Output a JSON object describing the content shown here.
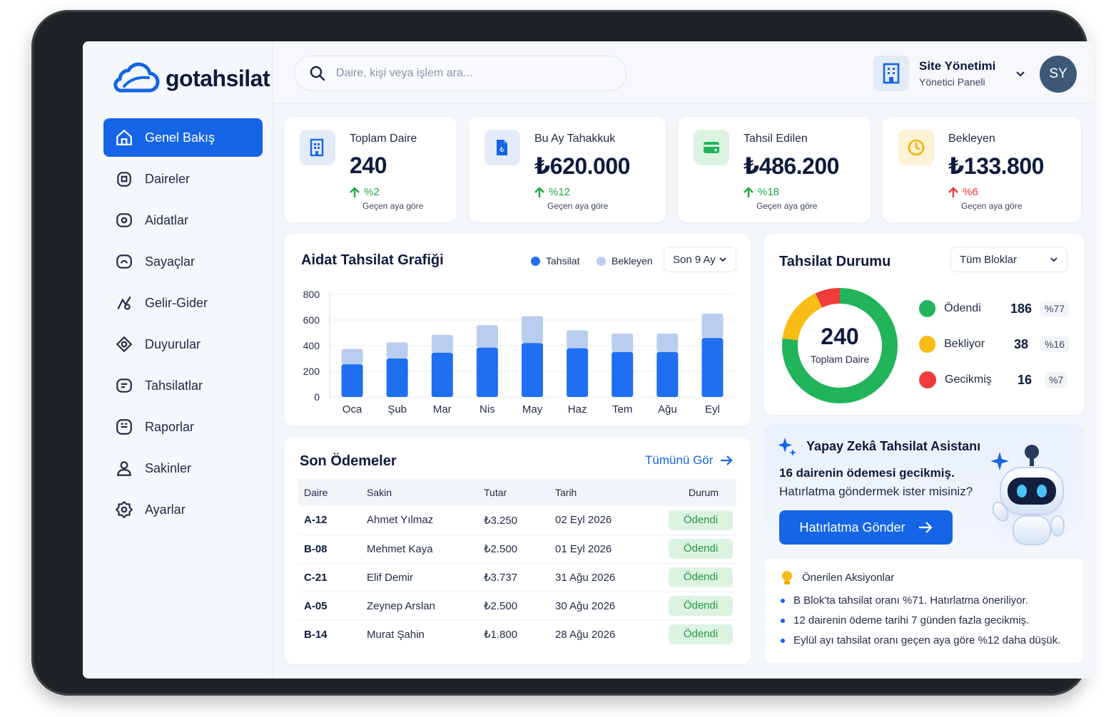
{
  "brand": {
    "name": "gotahsilat",
    "accent": "#1565e6"
  },
  "sidebar": {
    "items": [
      {
        "label": "Genel Bakış",
        "icon": "home-icon",
        "active": true
      },
      {
        "label": "Daireler",
        "icon": "building-icon"
      },
      {
        "label": "Aidatlar",
        "icon": "money-icon"
      },
      {
        "label": "Sayaçlar",
        "icon": "gauge-icon"
      },
      {
        "label": "Gelir-Gider",
        "icon": "chart-icon"
      },
      {
        "label": "Duyurular",
        "icon": "megaphone-icon"
      },
      {
        "label": "Tahsilatlar",
        "icon": "wallet-icon"
      },
      {
        "label": "Raporlar",
        "icon": "report-icon"
      },
      {
        "label": "Sakinler",
        "icon": "user-icon"
      },
      {
        "label": "Ayarlar",
        "icon": "gear-icon"
      }
    ]
  },
  "header": {
    "search_placeholder": "Daire, kişi veya işlem ara...",
    "org_title": "Site Yönetimi",
    "org_subtitle": "Yönetici Paneli",
    "avatar_initials": "SY"
  },
  "stats": [
    {
      "label": "Toplam Daire",
      "value": "240",
      "change": "%2",
      "direction": "up",
      "compare": "Geçen aya göre",
      "color": "#1faa3f"
    },
    {
      "label": "Bu Ay Tahakkuk",
      "value": "₺620.000",
      "change": "%12",
      "direction": "up",
      "compare": "Geçen aya göre",
      "color": "#1faa3f"
    },
    {
      "label": "Tahsil Edilen",
      "value": "₺486.200",
      "change": "%18",
      "direction": "up",
      "compare": "Geçen aya göre",
      "color": "#1faa3f"
    },
    {
      "label": "Bekleyen",
      "value": "₺133.800",
      "change": "%6",
      "direction": "up",
      "compare": "Geçen aya göre",
      "color": "#e53935"
    }
  ],
  "chart_section": {
    "title": "Aidat Tahsilat Grafiği",
    "legend_collected": "Tahsilat",
    "legend_pending": "Bekleyen",
    "period": "Son 9 Ay"
  },
  "chart_data": {
    "type": "bar",
    "stacked": true,
    "categories": [
      "Oca",
      "Şub",
      "Mar",
      "Nis",
      "May",
      "Haz",
      "Tem",
      "Ağu",
      "Eyl"
    ],
    "series": [
      {
        "name": "Tahsilat",
        "values": [
          255,
          300,
          345,
          385,
          420,
          380,
          350,
          350,
          460
        ],
        "color": "#1f6ff0"
      },
      {
        "name": "Bekleyen",
        "values": [
          120,
          125,
          140,
          175,
          210,
          140,
          145,
          145,
          190
        ],
        "color": "#b9cdf0"
      }
    ],
    "yticks": [
      0,
      200,
      400,
      600,
      800
    ],
    "ylim": [
      0,
      800
    ]
  },
  "status_section": {
    "title": "Tahsilat Durumu",
    "filter": "Tüm Bloklar",
    "total": "240",
    "total_label": "Toplam Daire",
    "items": [
      {
        "label": "Ödendi",
        "count": "186",
        "percent": "%77",
        "value": 77,
        "color": "#22b45b"
      },
      {
        "label": "Bekliyor",
        "count": "38",
        "percent": "%16",
        "value": 16,
        "color": "#f9bc15"
      },
      {
        "label": "Gecikmiş",
        "count": "16",
        "percent": "%7",
        "value": 7,
        "color": "#ef3b3b"
      }
    ]
  },
  "payments": {
    "title": "Son Ödemeler",
    "view_all": "Tümünü Gör",
    "columns": [
      "Daire",
      "Sakin",
      "Tutar",
      "Tarih",
      "Durum"
    ],
    "rows": [
      {
        "unit": "A-12",
        "resident": "Ahmet Yılmaz",
        "amount": "₺3.250",
        "date": "02 Eyl 2026",
        "status": "Ödendi"
      },
      {
        "unit": "B-08",
        "resident": "Mehmet Kaya",
        "amount": "₺2.500",
        "date": "01 Eyl 2026",
        "status": "Ödendi"
      },
      {
        "unit": "C-21",
        "resident": "Elif Demir",
        "amount": "₺3.737",
        "date": "31 Ağu 2026",
        "status": "Ödendi"
      },
      {
        "unit": "A-05",
        "resident": "Zeynep Arslan",
        "amount": "₺2.500",
        "date": "30 Ağu 2026",
        "status": "Ödendi"
      },
      {
        "unit": "B-14",
        "resident": "Murat Şahin",
        "amount": "₺1.800",
        "date": "28 Ağu 2026",
        "status": "Ödendi"
      }
    ]
  },
  "assistant": {
    "title": "Yapay Zekâ Tahsilat Asistanı",
    "headline": "16 dairenin ödemesi gecikmiş.",
    "question": "Hatırlatma göndermek ister misiniz?",
    "button": "Hatırlatma Gönder",
    "suggestions_title": "Önerilen Aksiyonlar",
    "suggestions": [
      "B Blok'ta tahsilat oranı %71. Hatırlatma öneriliyor.",
      "12 dairenin ödeme tarihi 7 günden fazla gecikmiş.",
      "Eylül ayı tahsilat oranı geçen aya göre %12 daha düşük."
    ]
  }
}
